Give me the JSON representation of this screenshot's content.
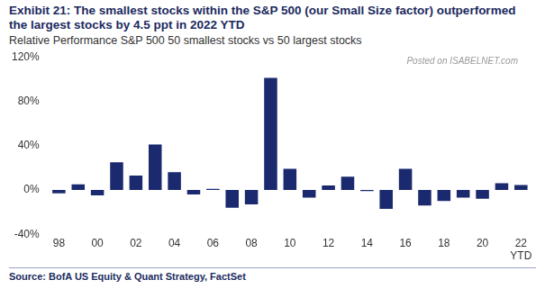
{
  "chart_data": {
    "type": "bar",
    "title": "Exhibit 21: The smallest stocks within the S&P 500 (our Small Size factor) outperformed the largest stocks by 4.5 ppt in 2022 YTD",
    "subtitle": "Relative Performance S&P 500 50 smallest stocks vs 50 largest stocks",
    "source": "Source: BofA US Equity & Quant Strategy, FactSet",
    "watermark": "Posted on ISABELNET.com",
    "categories": [
      "98",
      null,
      "00",
      null,
      "02",
      null,
      "04",
      null,
      "06",
      null,
      "08",
      null,
      "10",
      null,
      "12",
      null,
      "14",
      null,
      "16",
      null,
      "18",
      null,
      "20",
      null,
      "22 YTD"
    ],
    "values": [
      -3,
      5,
      -5,
      25,
      13,
      41,
      16,
      -4,
      1,
      -16,
      -13,
      101,
      19,
      -7,
      4,
      12,
      -1,
      -17,
      19,
      -14,
      -10,
      -7,
      -8,
      6,
      4.5
    ],
    "color": "#1b2a6e",
    "ylim": [
      -40,
      120
    ],
    "yticks": [
      {
        "value": -40,
        "label": "-40%"
      },
      {
        "value": 0,
        "label": "0%"
      },
      {
        "value": 40,
        "label": "40%"
      },
      {
        "value": 80,
        "label": "80%"
      },
      {
        "value": 120,
        "label": "120%"
      }
    ],
    "grid": false
  }
}
